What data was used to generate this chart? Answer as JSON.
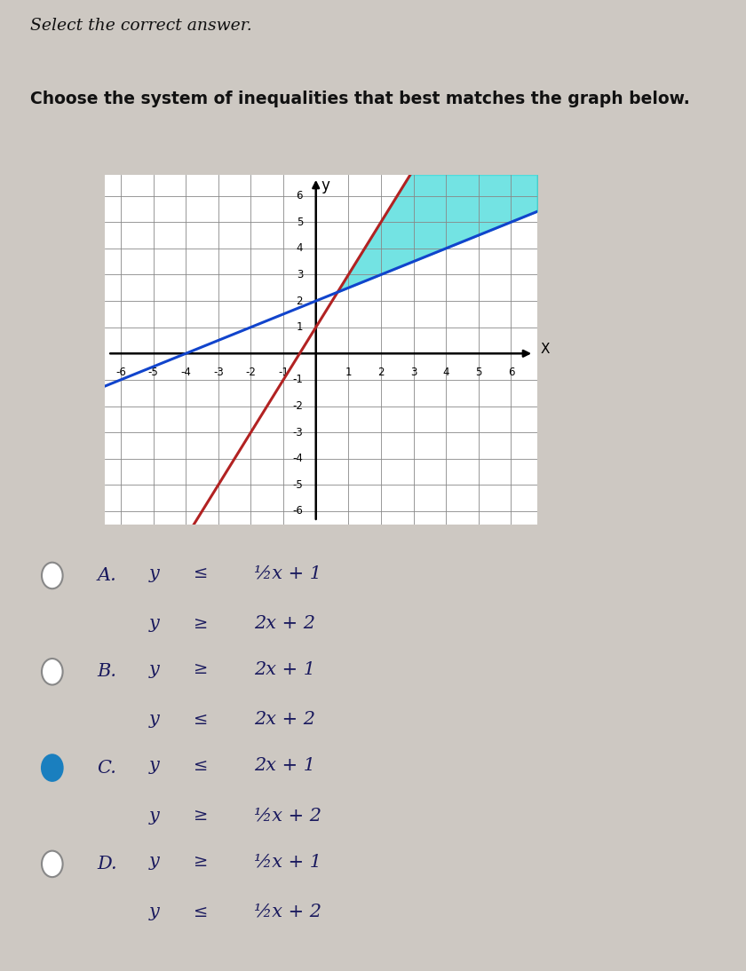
{
  "title_line1": "Select the correct answer.",
  "title_line2": "Choose the system of inequalities that best matches the graph below.",
  "bg_color": "#cdc8c2",
  "graph_bg": "#ffffff",
  "grid_color": "#888888",
  "xlim": [
    -6.5,
    6.8
  ],
  "ylim": [
    -6.5,
    6.8
  ],
  "xticks": [
    -6,
    -5,
    -4,
    -3,
    -2,
    -1,
    1,
    2,
    3,
    4,
    5,
    6
  ],
  "yticks": [
    -6,
    -5,
    -4,
    -3,
    -2,
    -1,
    1,
    2,
    3,
    4,
    5,
    6
  ],
  "line1_slope": 2,
  "line1_intercept": 1,
  "line1_color": "#b22222",
  "line2_slope": 0.5,
  "line2_intercept": 2,
  "line2_color": "#1144cc",
  "shade_color": "#00cccc",
  "shade_alpha": 0.55,
  "graph_ylabel": "y",
  "graph_xlabel": "X",
  "options": [
    {
      "label": "A.",
      "row1": [
        "y",
        "≤",
        "½x + 1"
      ],
      "row2": [
        "y",
        "≥",
        "2x + 2"
      ],
      "selected": false
    },
    {
      "label": "B.",
      "row1": [
        "y",
        "≥",
        "2x + 1"
      ],
      "row2": [
        "y",
        "≤",
        "2x + 2"
      ],
      "selected": false
    },
    {
      "label": "C.",
      "row1": [
        "y",
        "≤",
        "2x + 1"
      ],
      "row2": [
        "y",
        "≥",
        "½x + 2"
      ],
      "selected": true
    },
    {
      "label": "D.",
      "row1": [
        "y",
        "≥",
        "½x + 1"
      ],
      "row2": [
        "y",
        "≤",
        "½x + 2"
      ],
      "selected": false
    }
  ],
  "font_color": "#1a1a5e",
  "title_color": "#111111",
  "circle_unsel_fc": "#ffffff",
  "circle_unsel_ec": "#888888",
  "circle_sel_fc": "#1a7fbf",
  "circle_sel_ec": "#1a7fbf"
}
